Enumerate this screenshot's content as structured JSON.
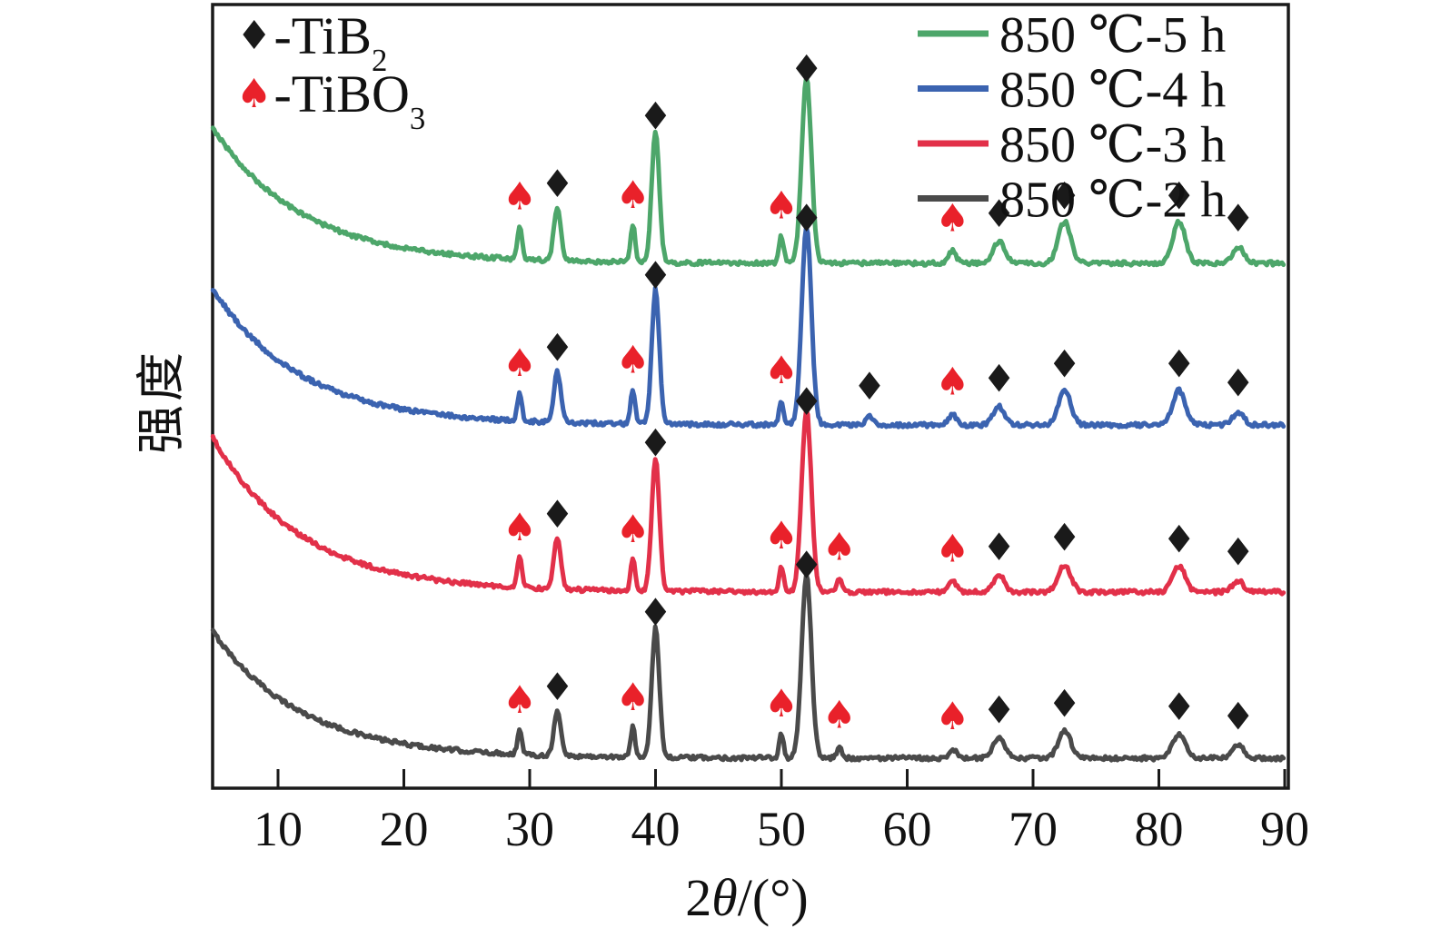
{
  "figure": {
    "background": "#ffffff",
    "frame_color": "#1a1a1a",
    "diamond_marker_color": "#1a1a1a",
    "spade_marker_color": "#e9212a"
  },
  "axes": {
    "xlabel": "2θ/(°)",
    "xlabel_prefix": "2",
    "xlabel_theta": "θ",
    "xlabel_suffix": "/(°)",
    "ylabel": "强度",
    "x_ticks": [
      10,
      20,
      30,
      40,
      50,
      60,
      70,
      80,
      90
    ]
  },
  "phase_legend": {
    "items": [
      {
        "symbol": "♦",
        "symbol_color": "#1a1a1a",
        "name": "TiB2",
        "prefix": "-TiB",
        "sub": "2"
      },
      {
        "symbol": "♠",
        "symbol_color": "#e9212a",
        "name": "TiBO3",
        "prefix": "-TiBO",
        "sub": "3"
      }
    ]
  },
  "chart_data": {
    "type": "line",
    "title": "",
    "xlabel": "2θ/(°)",
    "ylabel": "强度 (intensity, arbitrary units)",
    "xlim": [
      4.8,
      90
    ],
    "x_ticks": [
      10,
      20,
      30,
      40,
      50,
      60,
      70,
      80,
      90
    ],
    "grid": false,
    "legend_position": "top-right",
    "y_axis_note": "no y ticks; four XRD traces stacked with vertical offsets",
    "phases": [
      {
        "marker": "♦",
        "color": "#1a1a1a",
        "formula": "TiB2"
      },
      {
        "marker": "♠",
        "color": "#e9212a",
        "formula": "TiBO3"
      }
    ],
    "series": [
      {
        "name": "850 ℃-2 h",
        "color": "#4a4a4a",
        "baseline_au": 33,
        "background_decay": {
          "amplitude_au": 140,
          "tau_deg": 7,
          "start_deg": 4.8
        },
        "peaks": [
          {
            "two_theta": 29.2,
            "phase": "TiBO3",
            "height_au": 26,
            "width_deg": 0.18
          },
          {
            "two_theta": 32.2,
            "phase": "TiB2",
            "height_au": 48,
            "width_deg": 0.28
          },
          {
            "two_theta": 38.2,
            "phase": "TiBO3",
            "height_au": 33,
            "width_deg": 0.18
          },
          {
            "two_theta": 40.0,
            "phase": "TiB2",
            "height_au": 143,
            "width_deg": 0.3
          },
          {
            "two_theta": 50.0,
            "phase": "TiBO3",
            "height_au": 26,
            "width_deg": 0.18
          },
          {
            "two_theta": 52.0,
            "phase": "TiB2",
            "height_au": 203,
            "width_deg": 0.38
          },
          {
            "two_theta": 54.6,
            "phase": "TiBO3",
            "height_au": 12,
            "width_deg": 0.2
          },
          {
            "two_theta": 63.6,
            "phase": "TiBO3",
            "height_au": 10,
            "width_deg": 0.3
          },
          {
            "two_theta": 67.3,
            "phase": "TiB2",
            "height_au": 22,
            "width_deg": 0.45
          },
          {
            "two_theta": 72.5,
            "phase": "TiB2",
            "height_au": 30,
            "width_deg": 0.5
          },
          {
            "two_theta": 81.6,
            "phase": "TiB2",
            "height_au": 26,
            "width_deg": 0.5
          },
          {
            "two_theta": 86.3,
            "phase": "TiB2",
            "height_au": 14,
            "width_deg": 0.45
          }
        ]
      },
      {
        "name": "850 ℃-3 h",
        "color": "#e23049",
        "baseline_au": 216,
        "background_decay": {
          "amplitude_au": 170,
          "tau_deg": 7,
          "start_deg": 4.8
        },
        "peaks": [
          {
            "two_theta": 29.2,
            "phase": "TiBO3",
            "height_au": 33,
            "width_deg": 0.18
          },
          {
            "two_theta": 32.2,
            "phase": "TiB2",
            "height_au": 55,
            "width_deg": 0.28
          },
          {
            "two_theta": 38.2,
            "phase": "TiBO3",
            "height_au": 35,
            "width_deg": 0.18
          },
          {
            "two_theta": 40.0,
            "phase": "TiB2",
            "height_au": 147,
            "width_deg": 0.3
          },
          {
            "two_theta": 50.0,
            "phase": "TiBO3",
            "height_au": 28,
            "width_deg": 0.18
          },
          {
            "two_theta": 52.0,
            "phase": "TiB2",
            "height_au": 200,
            "width_deg": 0.38
          },
          {
            "two_theta": 54.6,
            "phase": "TiBO3",
            "height_au": 14,
            "width_deg": 0.2
          },
          {
            "two_theta": 63.6,
            "phase": "TiBO3",
            "height_au": 12,
            "width_deg": 0.3
          },
          {
            "two_theta": 67.3,
            "phase": "TiB2",
            "height_au": 18,
            "width_deg": 0.45
          },
          {
            "two_theta": 72.5,
            "phase": "TiB2",
            "height_au": 30,
            "width_deg": 0.5
          },
          {
            "two_theta": 81.6,
            "phase": "TiB2",
            "height_au": 28,
            "width_deg": 0.5
          },
          {
            "two_theta": 86.3,
            "phase": "TiB2",
            "height_au": 12,
            "width_deg": 0.45
          }
        ]
      },
      {
        "name": "850 ℃-4 h",
        "color": "#3b63b0",
        "baseline_au": 400,
        "background_decay": {
          "amplitude_au": 150,
          "tau_deg": 7,
          "start_deg": 4.8
        },
        "peaks": [
          {
            "two_theta": 29.2,
            "phase": "TiBO3",
            "height_au": 30,
            "width_deg": 0.18
          },
          {
            "two_theta": 32.2,
            "phase": "TiB2",
            "height_au": 55,
            "width_deg": 0.28
          },
          {
            "two_theta": 38.2,
            "phase": "TiBO3",
            "height_au": 38,
            "width_deg": 0.18
          },
          {
            "two_theta": 40.0,
            "phase": "TiB2",
            "height_au": 148,
            "width_deg": 0.3
          },
          {
            "two_theta": 50.0,
            "phase": "TiBO3",
            "height_au": 26,
            "width_deg": 0.18
          },
          {
            "two_theta": 52.0,
            "phase": "TiB2",
            "height_au": 220,
            "width_deg": 0.38
          },
          {
            "two_theta": 57.0,
            "phase": "TiB2",
            "height_au": 10,
            "width_deg": 0.3
          },
          {
            "two_theta": 63.6,
            "phase": "TiBO3",
            "height_au": 12,
            "width_deg": 0.3
          },
          {
            "two_theta": 67.3,
            "phase": "TiB2",
            "height_au": 20,
            "width_deg": 0.45
          },
          {
            "two_theta": 72.5,
            "phase": "TiB2",
            "height_au": 38,
            "width_deg": 0.5
          },
          {
            "two_theta": 81.6,
            "phase": "TiB2",
            "height_au": 38,
            "width_deg": 0.5
          },
          {
            "two_theta": 86.3,
            "phase": "TiB2",
            "height_au": 14,
            "width_deg": 0.45
          }
        ]
      },
      {
        "name": "850 ℃-5 h",
        "color": "#4da66a",
        "baseline_au": 578,
        "background_decay": {
          "amplitude_au": 150,
          "tau_deg": 7,
          "start_deg": 4.8
        },
        "peaks": [
          {
            "two_theta": 29.2,
            "phase": "TiBO3",
            "height_au": 36,
            "width_deg": 0.18
          },
          {
            "two_theta": 32.2,
            "phase": "TiB2",
            "height_au": 58,
            "width_deg": 0.28
          },
          {
            "two_theta": 38.2,
            "phase": "TiBO3",
            "height_au": 42,
            "width_deg": 0.18
          },
          {
            "two_theta": 40.0,
            "phase": "TiB2",
            "height_au": 145,
            "width_deg": 0.3
          },
          {
            "two_theta": 50.0,
            "phase": "TiBO3",
            "height_au": 30,
            "width_deg": 0.18
          },
          {
            "two_theta": 52.0,
            "phase": "TiB2",
            "height_au": 205,
            "width_deg": 0.38
          },
          {
            "two_theta": 63.6,
            "phase": "TiBO3",
            "height_au": 14,
            "width_deg": 0.3
          },
          {
            "two_theta": 67.3,
            "phase": "TiB2",
            "height_au": 24,
            "width_deg": 0.45
          },
          {
            "two_theta": 72.5,
            "phase": "TiB2",
            "height_au": 46,
            "width_deg": 0.5
          },
          {
            "two_theta": 81.6,
            "phase": "TiB2",
            "height_au": 46,
            "width_deg": 0.5
          },
          {
            "two_theta": 86.3,
            "phase": "TiB2",
            "height_au": 18,
            "width_deg": 0.45
          }
        ]
      }
    ]
  }
}
